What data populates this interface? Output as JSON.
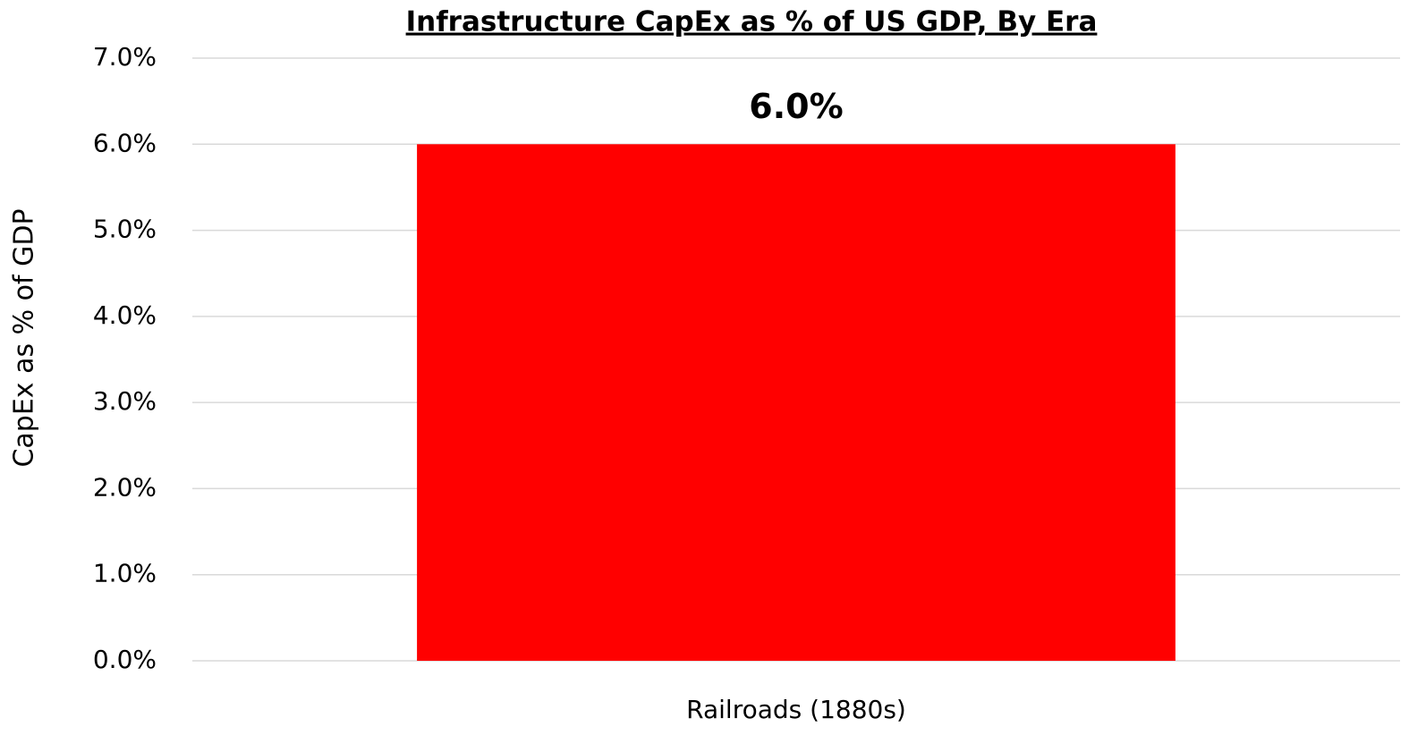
{
  "chart_data": {
    "type": "bar",
    "title": "Infrastructure CapEx as % of US GDP, By Era",
    "ylabel": "CapEx  as % of GDP",
    "categories": [
      "Railroads (1880s)"
    ],
    "values": [
      6.0
    ],
    "value_labels": [
      "6.0%"
    ],
    "color": "#ff0000",
    "ylim": [
      0,
      7
    ],
    "yticks": [
      {
        "value": 0,
        "label": "0.0%"
      },
      {
        "value": 1,
        "label": "1.0%"
      },
      {
        "value": 2,
        "label": "2.0%"
      },
      {
        "value": 3,
        "label": "3.0%"
      },
      {
        "value": 4,
        "label": "4.0%"
      },
      {
        "value": 5,
        "label": "5.0%"
      },
      {
        "value": 6,
        "label": "6.0%"
      },
      {
        "value": 7,
        "label": "7.0%"
      }
    ],
    "grid": true
  }
}
